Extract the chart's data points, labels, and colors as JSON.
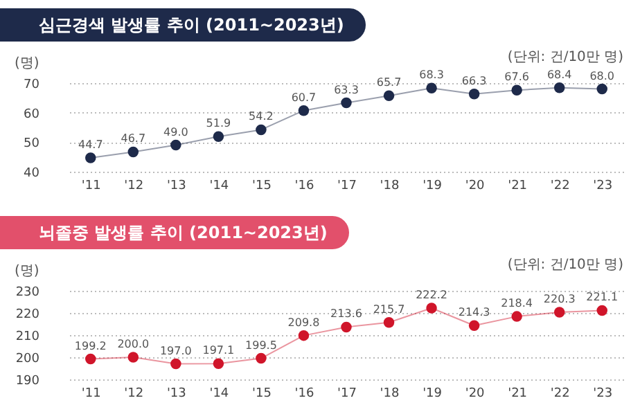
{
  "chart_data": [
    {
      "type": "line",
      "title": "심근경색 발생률 추이 (2011~2023년)",
      "ylabel": "(명)",
      "annotations": [
        "(단위: 건/10만 명)"
      ],
      "categories": [
        "'11",
        "'12",
        "'13",
        "'14",
        "'15",
        "'16",
        "'17",
        "'18",
        "'19",
        "'20",
        "'21",
        "'22",
        "'23"
      ],
      "series": [
        {
          "color": "#1e2a4a",
          "values": [
            44.7,
            46.7,
            49.0,
            51.9,
            54.2,
            60.7,
            63.3,
            65.7,
            68.3,
            66.3,
            67.6,
            68.4,
            68.0
          ]
        }
      ],
      "value_labels": [
        "44.7",
        "46.7",
        "49.0",
        "51.9",
        "54.2",
        "60.7",
        "63.3",
        "65.7",
        "68.3",
        "66.3",
        "67.6",
        "68.4",
        "68.0"
      ],
      "ylim": [
        40,
        70
      ],
      "yticks": [
        40,
        50,
        60,
        70
      ],
      "grid": "y",
      "marker": "circle"
    },
    {
      "type": "line",
      "title": "뇌졸중 발생률 추이 (2011~2023년)",
      "ylabel": "(명)",
      "annotations": [
        "(단위: 건/10만 명)"
      ],
      "categories": [
        "'11",
        "'12",
        "'13",
        "'14",
        "'15",
        "'16",
        "'17",
        "'18",
        "'19",
        "'20",
        "'21",
        "'22",
        "'23"
      ],
      "series": [
        {
          "color": "#d0152a",
          "values": [
            199.2,
            200.0,
            197.0,
            197.1,
            199.5,
            209.8,
            213.6,
            215.7,
            222.2,
            214.3,
            218.4,
            220.3,
            221.1
          ]
        }
      ],
      "value_labels": [
        "199.2",
        "200.0",
        "197.0",
        "197.1",
        "199.5",
        "209.8",
        "213.6",
        "215.7",
        "222.2",
        "214.3",
        "218.4",
        "220.3",
        "221.1"
      ],
      "ylim": [
        190,
        230
      ],
      "yticks": [
        190,
        200,
        210,
        220,
        230
      ],
      "grid": "y",
      "marker": "circle"
    }
  ]
}
